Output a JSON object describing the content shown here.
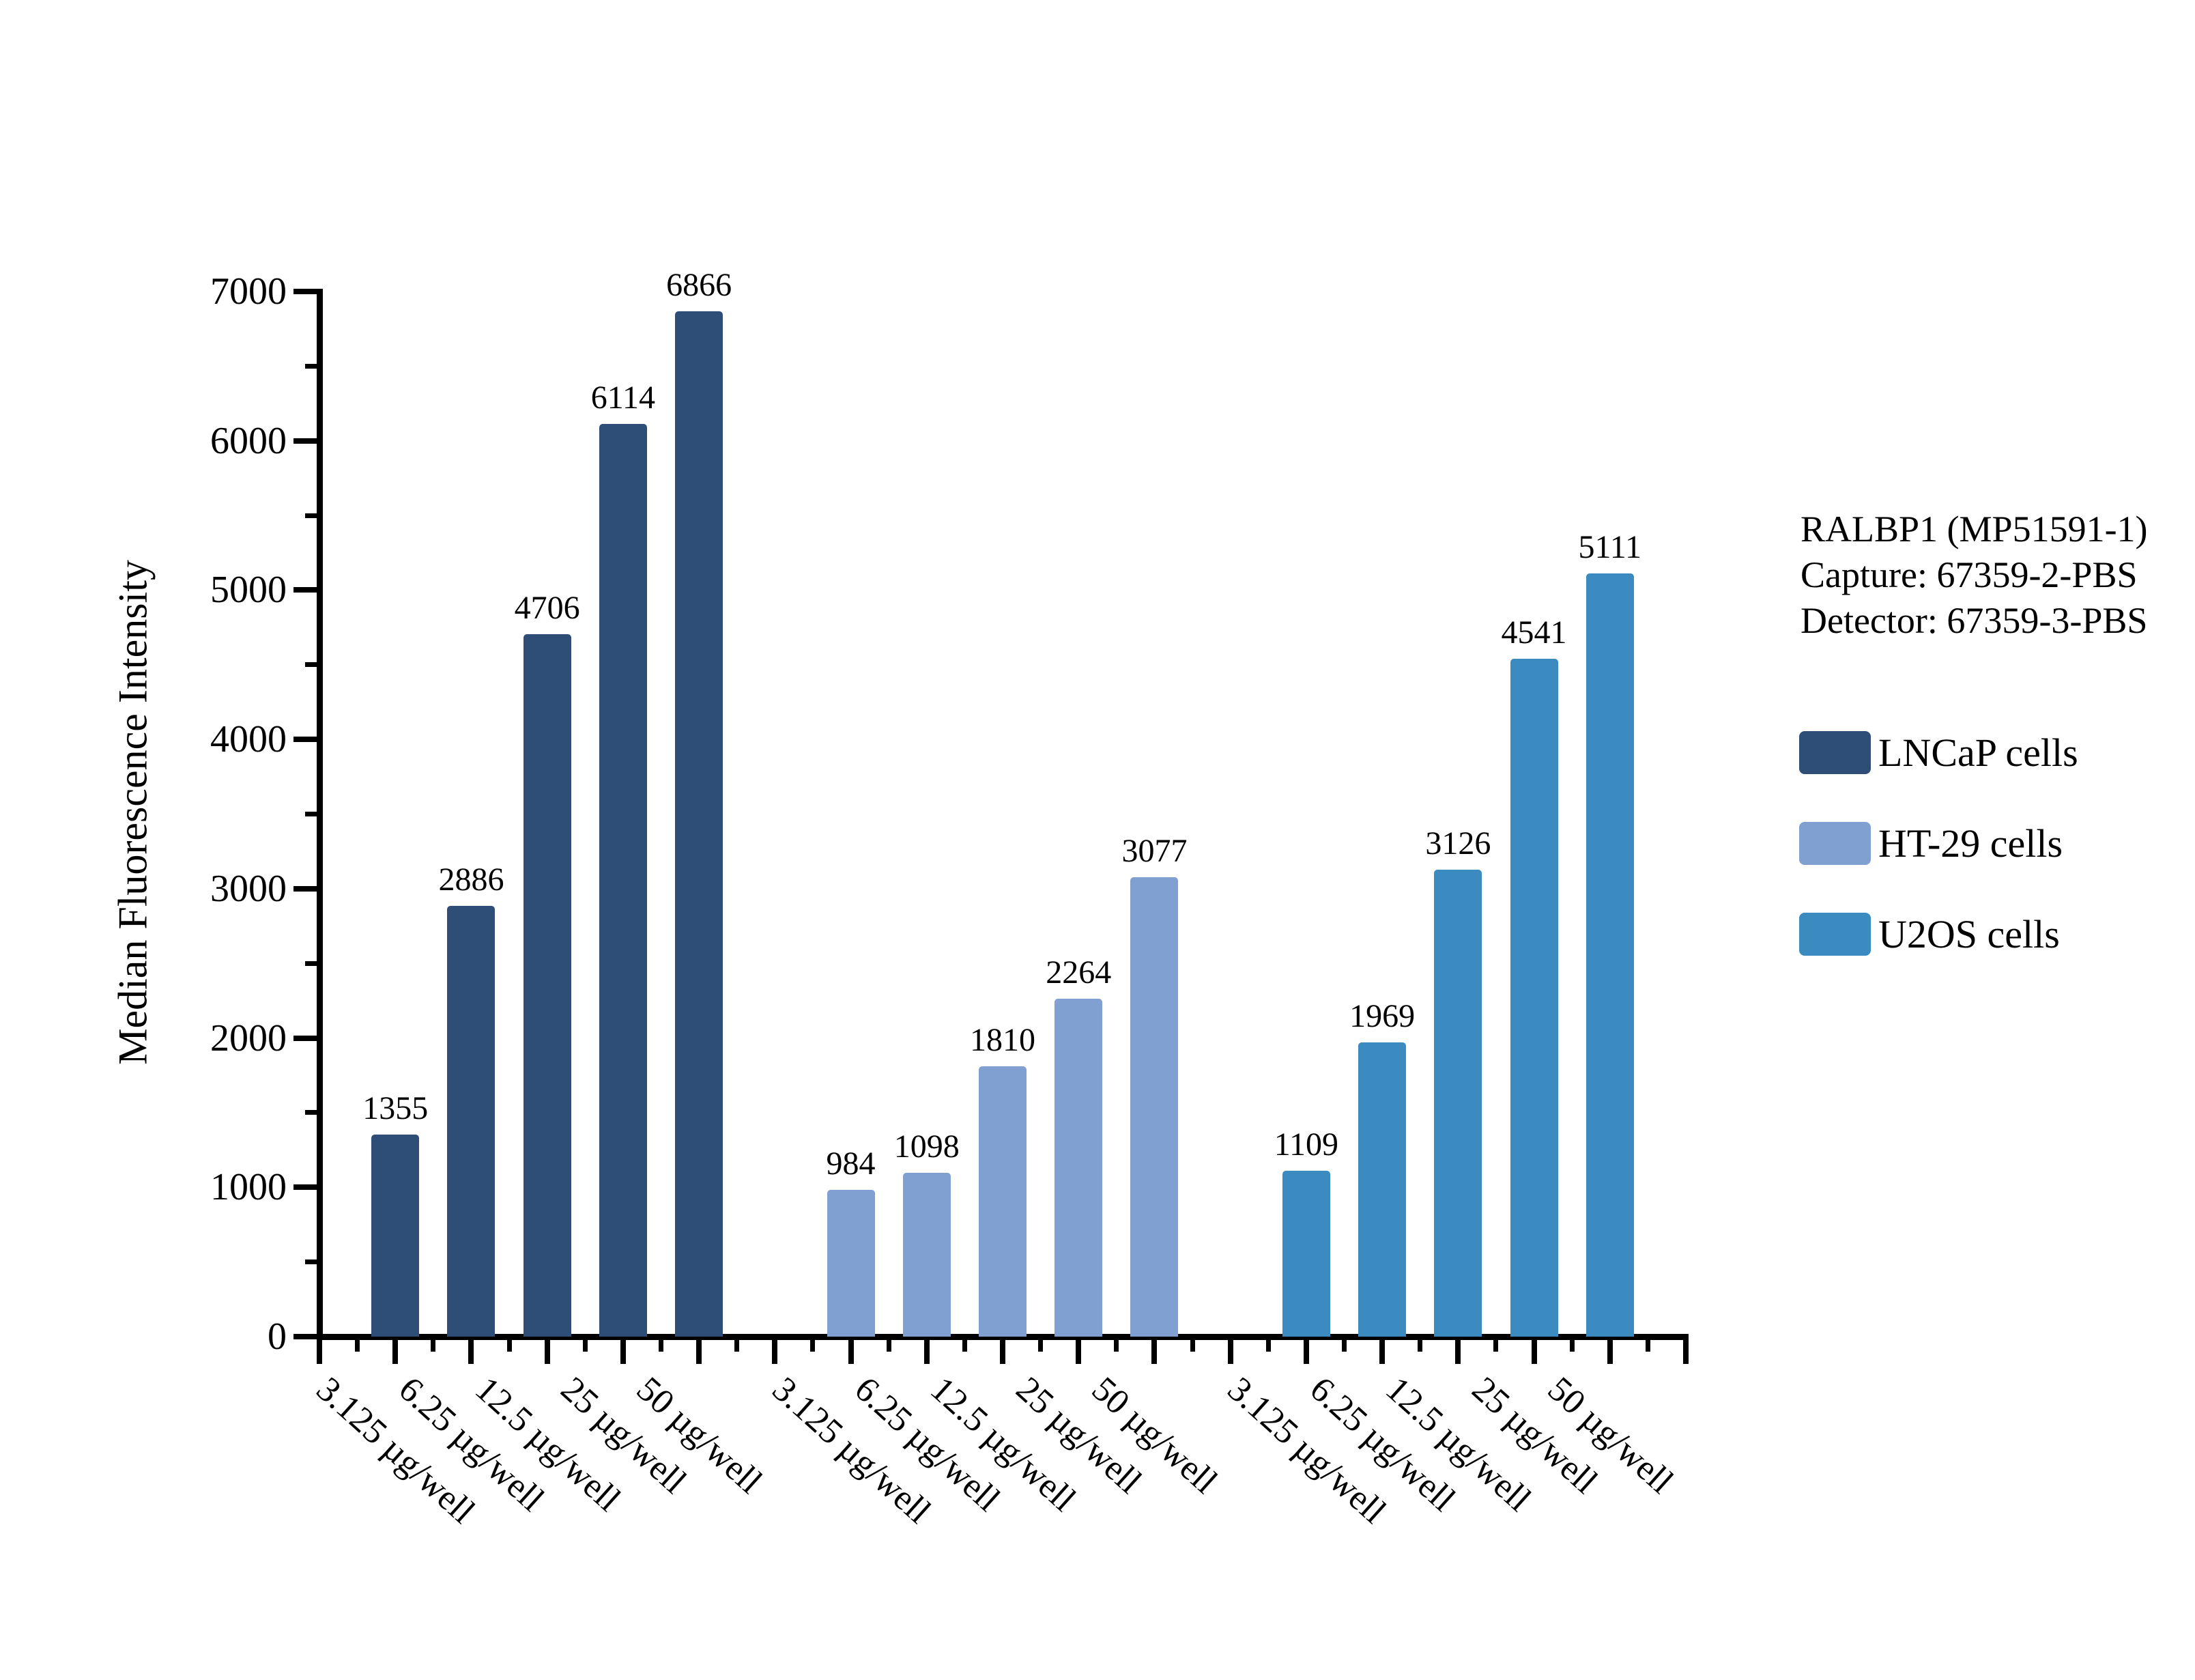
{
  "chart_data": {
    "type": "bar",
    "title": "RALBP1 (MP51591-1)",
    "annotation_lines": [
      "RALBP1 (MP51591-1)",
      "Capture: 67359-2-PBS",
      "Detector: 67359-3-PBS"
    ],
    "ylabel": "Median Fluorescence Intensity",
    "xlabel": "",
    "ylim": [
      0,
      7000
    ],
    "ytick_major_step": 1000,
    "ytick_minor_step": 500,
    "ytick_labels": [
      "0",
      "1000",
      "2000",
      "3000",
      "4000",
      "5000",
      "6000",
      "7000"
    ],
    "grid": false,
    "legend_position": "right-of-plot",
    "bar_value_labels_shown": true,
    "categories": [
      "3.125 µg/well",
      "6.25 µg/well",
      "12.5 µg/well",
      "25 µg/well",
      "50 µg/well"
    ],
    "series": [
      {
        "name": "LNCaP cells",
        "color": "#2e4e78",
        "values": [
          1355,
          2886,
          4706,
          6114,
          6866
        ]
      },
      {
        "name": "HT-29 cells",
        "color": "#7fa0d1",
        "values": [
          984,
          1098,
          1810,
          2264,
          3077
        ]
      },
      {
        "name": "U2OS cells",
        "color": "#3b8bc0",
        "values": [
          1109,
          1969,
          3126,
          4541,
          5111
        ]
      }
    ]
  }
}
